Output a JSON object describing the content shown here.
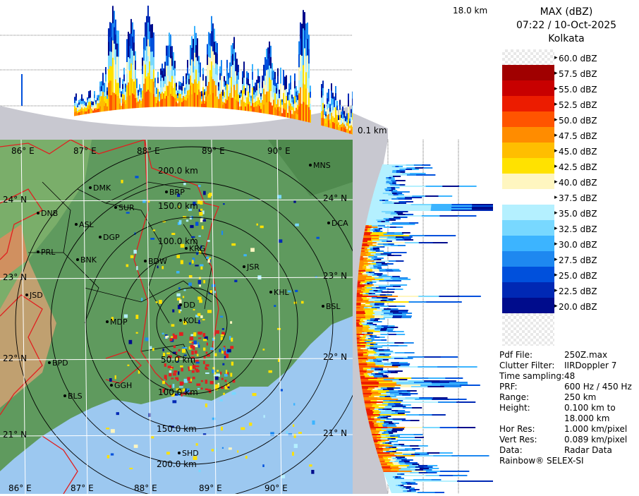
{
  "sidebar": {
    "title": "MAX (dBZ)",
    "datetime": "07:22 / 10-Oct-2025",
    "station": "Kolkata"
  },
  "top_panel": {
    "max_height_label": "18.0 km",
    "min_height_label": "0.1 km"
  },
  "legend": [
    {
      "label": "60.0 dBZ",
      "color": "checker"
    },
    {
      "label": "57.5 dBZ",
      "color": "#a00000"
    },
    {
      "label": "55.0 dBZ",
      "color": "#c80000"
    },
    {
      "label": "52.5 dBZ",
      "color": "#ec1c00"
    },
    {
      "label": "50.0 dBZ",
      "color": "#ff5400"
    },
    {
      "label": "47.5 dBZ",
      "color": "#ff8c00"
    },
    {
      "label": "45.0 dBZ",
      "color": "#ffbe00"
    },
    {
      "label": "42.5 dBZ",
      "color": "#ffe200"
    },
    {
      "label": "40.0 dBZ",
      "color": "#fff6c0"
    },
    {
      "label": "37.5 dBZ",
      "color": "#ffffff"
    },
    {
      "label": "35.0 dBZ",
      "color": "#b4f0ff"
    },
    {
      "label": "32.5 dBZ",
      "color": "#78d8ff"
    },
    {
      "label": "30.0 dBZ",
      "color": "#3cb4ff"
    },
    {
      "label": "27.5 dBZ",
      "color": "#1e88f0"
    },
    {
      "label": "25.0 dBZ",
      "color": "#0050dc"
    },
    {
      "label": "22.5 dBZ",
      "color": "#0028b4"
    },
    {
      "label": "20.0 dBZ",
      "color": "#000c8c"
    }
  ],
  "info": [
    {
      "key": "Pdf File:",
      "value": "250Z.max"
    },
    {
      "key": "Clutter Filter:",
      "value": "IIRDoppler 7"
    },
    {
      "key": "Time sampling:",
      "value": "48"
    },
    {
      "key": "PRF:",
      "value": "600 Hz / 450 Hz"
    },
    {
      "key": "Range:",
      "value": "250 km"
    },
    {
      "key": "Height:",
      "value": "0.100 km to"
    },
    {
      "key": "",
      "value": "18.000 km"
    },
    {
      "key": "Hor Res:",
      "value": "1.000 km/pixel"
    },
    {
      "key": "Vert Res:",
      "value": "0.089 km/pixel"
    },
    {
      "key": "Data:",
      "value": "Radar Data"
    }
  ],
  "footer": "Rainbow® SELEX-SI",
  "map": {
    "lon_labels_top": [
      "86° E",
      "87° E",
      "88° E",
      "89° E",
      "90° E"
    ],
    "lon_labels_bottom": [
      "86° E",
      "87° E",
      "88° E",
      "89° E",
      "90° E"
    ],
    "lat_labels_left": [
      "24° N",
      "23° N",
      "22° N",
      "21° N"
    ],
    "lat_labels_right": [
      "24° N",
      "23° N",
      "22° N",
      "21° N"
    ],
    "range_labels": [
      "50.0 km",
      "100.0 km",
      "150.0 km",
      "200.0 km"
    ],
    "range_labels_south": [
      "100.0 km",
      "150.0 km",
      "200.0 km"
    ],
    "cities": [
      "MNS",
      "DMK",
      "BRP",
      "DNB",
      "SUR",
      "ASL",
      "DCA",
      "DGP",
      "PRL",
      "KRG",
      "BNK",
      "BDW",
      "JSR",
      "KHL",
      "JSD",
      "DD",
      "BSL",
      "MDP",
      "KOL",
      "BPD",
      "GGH",
      "BLS",
      "SHD"
    ],
    "colors": {
      "land": "#5f9a5e",
      "sea": "#9cc8f0",
      "border": "#e02020",
      "district": "#000000",
      "range_ring": "#000000"
    }
  }
}
